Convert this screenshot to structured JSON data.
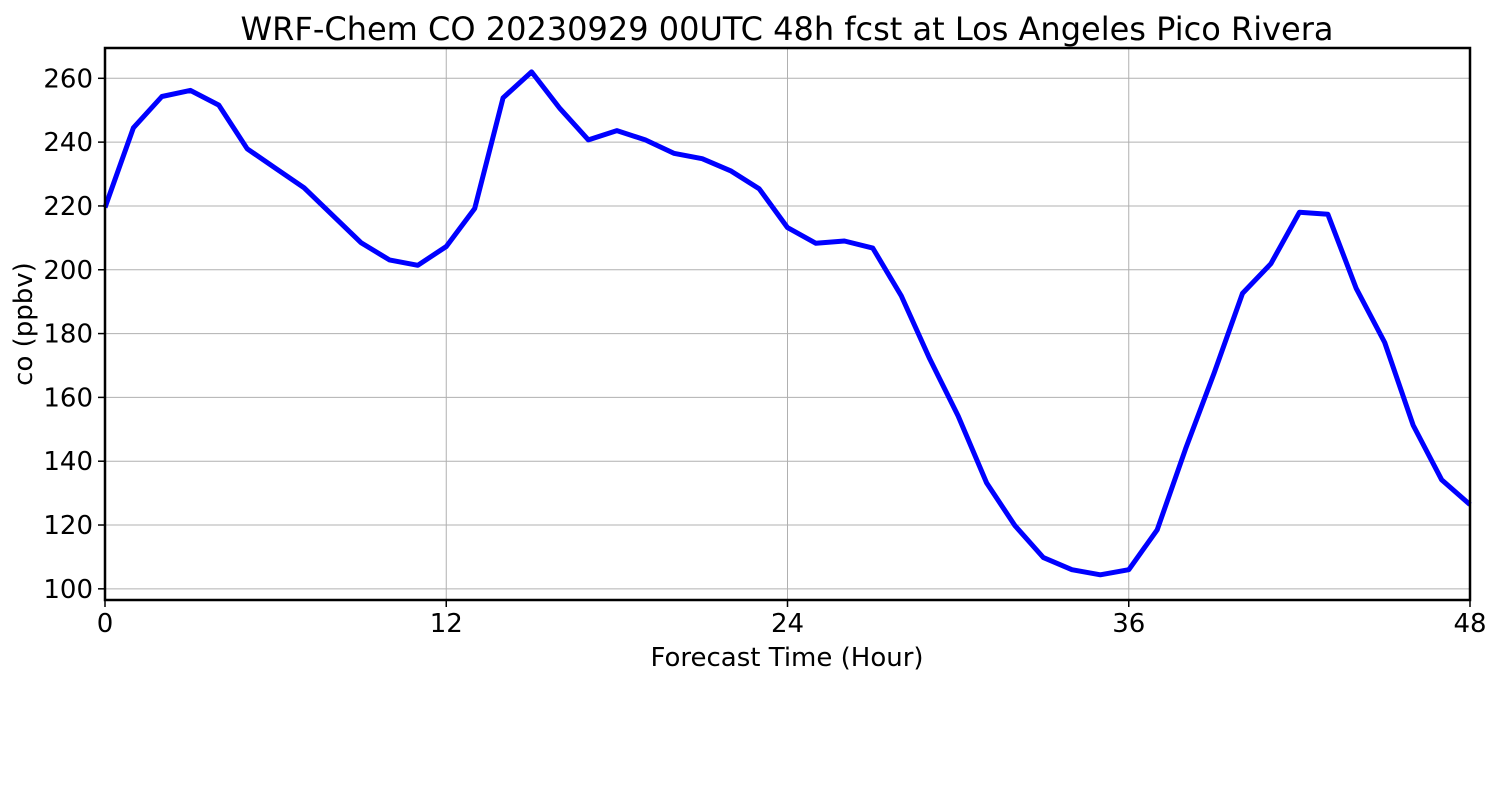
{
  "chart_data": {
    "type": "line",
    "title": "WRF-Chem CO  20230929 00UTC 48h fcst at Los Angeles Pico Rivera",
    "xlabel": "Forecast Time (Hour)",
    "ylabel": "co  (ppbv)",
    "xlim": [
      0,
      48
    ],
    "ylim": [
      96.5,
      269.5
    ],
    "xticks": [
      0,
      12,
      24,
      36,
      48
    ],
    "yticks": [
      100,
      120,
      140,
      160,
      180,
      200,
      220,
      240,
      260
    ],
    "xtick_labels": [
      "0",
      "12",
      "24",
      "36",
      "48"
    ],
    "ytick_labels": [
      "100",
      "120",
      "140",
      "160",
      "180",
      "200",
      "220",
      "240",
      "260"
    ],
    "grid": true,
    "legend": "none",
    "series": [
      {
        "color": "#0000ff",
        "x": [
          0,
          1,
          2,
          3,
          4,
          5,
          6,
          7,
          8,
          9,
          10,
          11,
          12,
          13,
          14,
          15,
          16,
          17,
          18,
          19,
          20,
          21,
          22,
          23,
          24,
          25,
          26,
          27,
          28,
          29,
          30,
          31,
          32,
          33,
          34,
          35,
          36,
          37,
          38,
          39,
          40,
          41,
          42,
          43,
          44,
          45,
          46,
          47,
          48
        ],
        "values": [
          219.5,
          244.5,
          254.3,
          256.2,
          251.6,
          237.9,
          231.8,
          225.7,
          217.1,
          208.5,
          203.1,
          201.4,
          207.3,
          219.2,
          253.9,
          262.0,
          250.5,
          240.7,
          243.6,
          240.7,
          236.5,
          234.8,
          231.0,
          225.4,
          213.2,
          208.3,
          209.0,
          206.8,
          191.8,
          172.1,
          154.2,
          133.2,
          119.8,
          109.8,
          106.0,
          104.4,
          106.0,
          118.5,
          143.9,
          167.6,
          192.6,
          201.9,
          218.0,
          217.4,
          194.1,
          177.2,
          151.3,
          134.2,
          126.4
        ]
      }
    ]
  }
}
